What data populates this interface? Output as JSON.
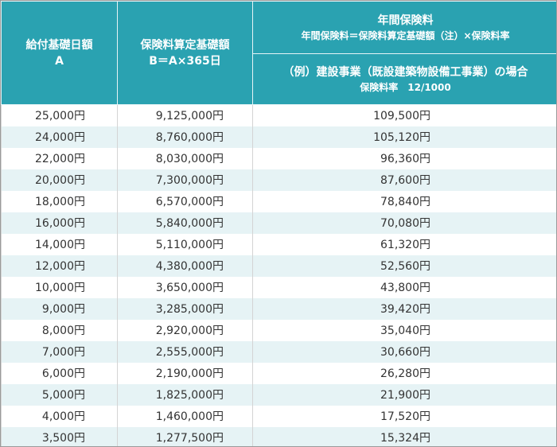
{
  "header": {
    "col1_line1": "給付基礎日額",
    "col1_line2": "A",
    "col2_line1": "保険料算定基礎額",
    "col2_line2": "B＝A×365日",
    "col3_title": "年間保険料",
    "col3_formula": "年間保険料＝保険料算定基礎額（注）×保険料率",
    "col3_example": "（例）建設事業（既設建築物設備工事業）の場合",
    "col3_rate": "保険料率　12/1000"
  },
  "rows": [
    {
      "daily": "25,000円",
      "base": "9,125,000円",
      "annual": "109,500円"
    },
    {
      "daily": "24,000円",
      "base": "8,760,000円",
      "annual": "105,120円"
    },
    {
      "daily": "22,000円",
      "base": "8,030,000円",
      "annual": "96,360円"
    },
    {
      "daily": "20,000円",
      "base": "7,300,000円",
      "annual": "87,600円"
    },
    {
      "daily": "18,000円",
      "base": "6,570,000円",
      "annual": "78,840円"
    },
    {
      "daily": "16,000円",
      "base": "5,840,000円",
      "annual": "70,080円"
    },
    {
      "daily": "14,000円",
      "base": "5,110,000円",
      "annual": "61,320円"
    },
    {
      "daily": "12,000円",
      "base": "4,380,000円",
      "annual": "52,560円"
    },
    {
      "daily": "10,000円",
      "base": "3,650,000円",
      "annual": "43,800円"
    },
    {
      "daily": "9,000円",
      "base": "3,285,000円",
      "annual": "39,420円"
    },
    {
      "daily": "8,000円",
      "base": "2,920,000円",
      "annual": "35,040円"
    },
    {
      "daily": "7,000円",
      "base": "2,555,000円",
      "annual": "30,660円"
    },
    {
      "daily": "6,000円",
      "base": "2,190,000円",
      "annual": "26,280円"
    },
    {
      "daily": "5,000円",
      "base": "1,825,000円",
      "annual": "21,900円"
    },
    {
      "daily": "4,000円",
      "base": "1,460,000円",
      "annual": "17,520円"
    },
    {
      "daily": "3,500円",
      "base": "1,277,500円",
      "annual": "15,324円"
    }
  ],
  "colors": {
    "header_bg": "#2aa2b1",
    "stripe_bg": "#e6f3f5"
  }
}
